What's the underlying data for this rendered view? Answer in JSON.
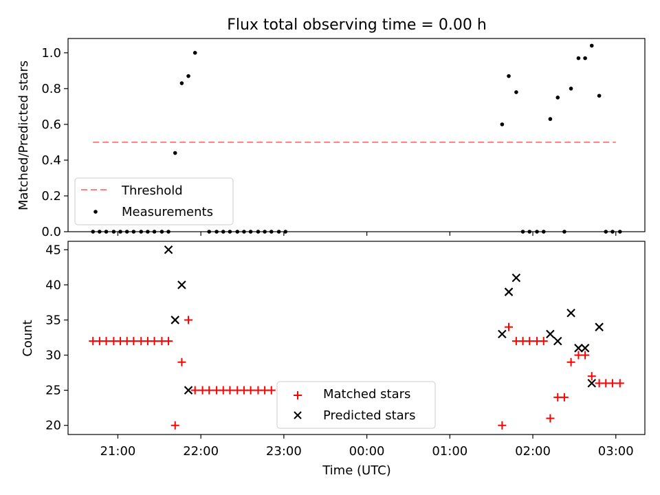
{
  "chart_data": [
    {
      "type": "scatter",
      "title": "Flux total observing time = 0.00 h",
      "xlabel": "",
      "ylabel": "Matched/Predicted stars",
      "ylim": [
        0.0,
        1.08
      ],
      "yticks": [
        "0.0",
        "0.2",
        "0.4",
        "0.6",
        "0.8",
        "1.0"
      ],
      "ytick_values": [
        0.0,
        0.2,
        0.4,
        0.6,
        0.8,
        1.0
      ],
      "x_range_hours": [
        -3.6,
        3.35
      ],
      "legend_position": "lower-left",
      "threshold": {
        "name": "Threshold",
        "value": 0.5,
        "x_start_hours": -3.3,
        "x_end_hours": 3.0,
        "color": "#ff7f7f"
      },
      "series": [
        {
          "name": "Measurements",
          "color": "#000000",
          "x_hours": [
            -3.3,
            -3.22,
            -3.14,
            -3.05,
            -2.97,
            -2.89,
            -2.81,
            -2.72,
            -2.64,
            -2.56,
            -2.47,
            -2.39,
            -2.31,
            -2.23,
            -2.15,
            -2.07,
            -1.9,
            -1.81,
            -1.73,
            -1.65,
            -1.56,
            -1.48,
            -1.4,
            -1.31,
            -1.23,
            -1.15,
            -1.06,
            -0.98,
            1.63,
            1.71,
            1.8,
            1.88,
            1.96,
            2.05,
            2.13,
            2.21,
            2.3,
            2.38,
            2.46,
            2.55,
            2.63,
            2.71,
            2.8,
            2.88,
            2.96,
            3.05
          ],
          "y": [
            0,
            0,
            0,
            0,
            0,
            0,
            0,
            0,
            0,
            0,
            0,
            0,
            0.44,
            0.83,
            0.87,
            1.0,
            0,
            0,
            0,
            0,
            0,
            0,
            0,
            0,
            0,
            0,
            0,
            0,
            0.6,
            0.87,
            0.78,
            0,
            0,
            0,
            0,
            0.63,
            0.75,
            0,
            0.8,
            0.97,
            0.97,
            1.04,
            0.76,
            0,
            0,
            0
          ]
        }
      ]
    },
    {
      "type": "scatter",
      "title": "",
      "xlabel": "Time (UTC)",
      "ylabel": "Count",
      "ylim": [
        18.7,
        46.2
      ],
      "yticks": [
        "20",
        "25",
        "30",
        "35",
        "40",
        "45"
      ],
      "ytick_values": [
        20,
        25,
        30,
        35,
        40,
        45
      ],
      "xticks": [
        "21:00",
        "22:00",
        "23:00",
        "00:00",
        "01:00",
        "02:00",
        "03:00"
      ],
      "xtick_values_hours": [
        -3,
        -2,
        -1,
        0,
        1,
        2,
        3
      ],
      "x_range_hours": [
        -3.6,
        3.35
      ],
      "legend_position": "lower-center",
      "series": [
        {
          "name": "Matched stars",
          "color": "#ff0000",
          "marker": "plus",
          "x_hours": [
            -3.3,
            -3.22,
            -3.14,
            -3.05,
            -2.97,
            -2.89,
            -2.81,
            -2.72,
            -2.64,
            -2.56,
            -2.47,
            -2.39,
            -2.31,
            -2.23,
            -2.15,
            -2.07,
            -1.98,
            -1.9,
            -1.81,
            -1.73,
            -1.65,
            -1.56,
            -1.48,
            -1.4,
            -1.31,
            -1.23,
            -1.15,
            1.63,
            1.71,
            1.8,
            1.88,
            1.96,
            2.05,
            2.13,
            2.21,
            2.3,
            2.38,
            2.46,
            2.55,
            2.63,
            2.71,
            2.8,
            2.88,
            2.96,
            3.05
          ],
          "y": [
            32,
            32,
            32,
            32,
            32,
            32,
            32,
            32,
            32,
            32,
            32,
            32,
            20,
            29,
            35,
            25,
            25,
            25,
            25,
            25,
            25,
            25,
            25,
            25,
            25,
            25,
            25,
            20,
            34,
            32,
            32,
            32,
            32,
            32,
            21,
            24,
            24,
            29,
            30,
            30,
            27,
            26,
            26,
            26,
            26
          ]
        },
        {
          "name": "Predicted stars",
          "color": "#000000",
          "marker": "x",
          "x_hours": [
            -2.39,
            -2.31,
            -2.23,
            -2.15,
            1.63,
            1.71,
            1.8,
            2.21,
            2.3,
            2.46,
            2.55,
            2.63,
            2.71,
            2.8
          ],
          "y": [
            45,
            35,
            40,
            25,
            33,
            39,
            41,
            33,
            32,
            36,
            31,
            31,
            26,
            34
          ]
        }
      ]
    }
  ]
}
